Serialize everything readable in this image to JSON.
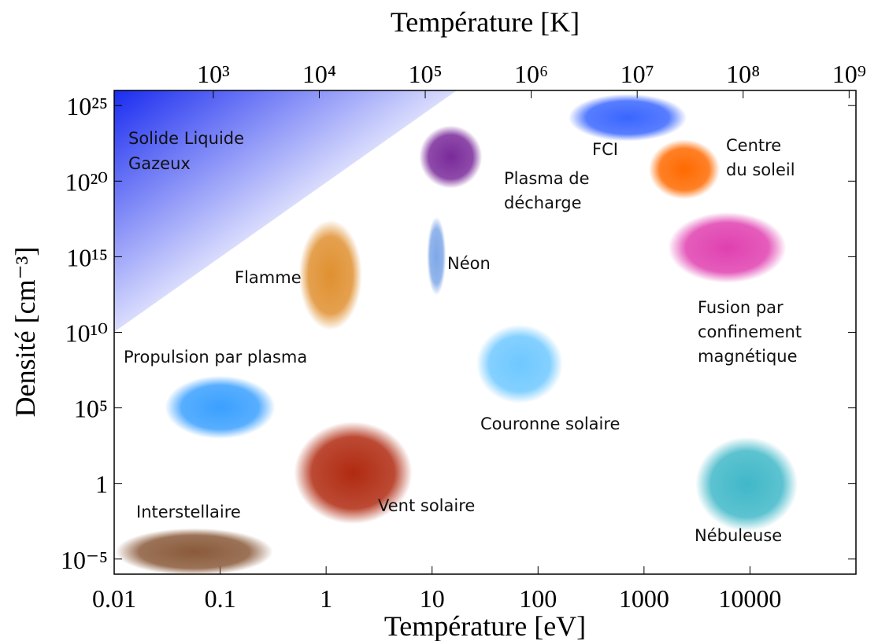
{
  "chart_data": {
    "type": "annotated-scatter",
    "xlabel": "Température [eV]",
    "x2label": "Température [K]",
    "ylabel": "Densité [cm⁻³]",
    "xlog": true,
    "ylog": true,
    "xlim": [
      0.01,
      100000
    ],
    "xticks": [
      0.01,
      0.1,
      1,
      10,
      100,
      1000,
      10000
    ],
    "x2lim": [
      116,
      1160000000
    ],
    "x2ticks": [
      {
        "value": 1000,
        "label": "10³"
      },
      {
        "value": 10000,
        "label": "10⁴"
      },
      {
        "value": 100000,
        "label": "10⁵"
      },
      {
        "value": 1000000,
        "label": "10⁶"
      },
      {
        "value": 10000000,
        "label": "10⁷"
      },
      {
        "value": 100000000,
        "label": "10⁸"
      },
      {
        "value": 1000000000,
        "label": "10⁹"
      }
    ],
    "ylim": [
      1e-06,
      1e+26
    ],
    "yticks": [
      {
        "value": 1e-05,
        "label": "10⁻⁵"
      },
      1,
      {
        "value": 100000,
        "label": "10⁵"
      },
      {
        "value": 10000000000,
        "label": "10¹⁰"
      },
      {
        "value": 1000000000000000.0,
        "label": "10¹⁵"
      },
      {
        "value": 1e+20,
        "label": "10²⁰"
      },
      {
        "value": 1e+25,
        "label": "10²⁵"
      }
    ],
    "region_label": [
      "Solide Liquide",
      "Gazeux"
    ],
    "region_color": "#1a2cf0",
    "points": [
      {
        "label": [
          "FCI"
        ],
        "x": 700,
        "y": 1.6e+24,
        "color": "#3a66ff"
      },
      {
        "label": [
          "Centre",
          "du soleil"
        ],
        "x": 2400,
        "y": 6e+20,
        "color": "#ff6a00"
      },
      {
        "label": [
          "Plasma de",
          "décharge"
        ],
        "x": 15,
        "y": 4e+21,
        "color": "#7a2a9a"
      },
      {
        "label": [
          "Néon"
        ],
        "x": 11,
        "y": 1100000000000000.0,
        "color": "#7fa8e8"
      },
      {
        "label": [
          "Flamme"
        ],
        "x": 1.1,
        "y": 60000000000000.0,
        "color": "#e09030"
      },
      {
        "label": [
          "Fusion par",
          "confinement",
          "magnétique"
        ],
        "x": 6100,
        "y": 4000000000000000.0,
        "color": "#e040b0"
      },
      {
        "label": [
          "Couronne solaire"
        ],
        "x": 67,
        "y": 80000000,
        "color": "#6ec8ff"
      },
      {
        "label": [
          "Propulsion par plasma"
        ],
        "x": 0.1,
        "y": 110000,
        "color": "#3aa0ff"
      },
      {
        "label": [
          "Vent solaire"
        ],
        "x": 1.8,
        "y": 5,
        "color": "#b02a10"
      },
      {
        "label": [
          "Nébuleuse"
        ],
        "x": 9300,
        "y": 0.9,
        "color": "#40b8c8"
      },
      {
        "label": [
          "Interstellaire"
        ],
        "x": 0.057,
        "y": 3e-05,
        "color": "#8a5a3a"
      }
    ]
  }
}
